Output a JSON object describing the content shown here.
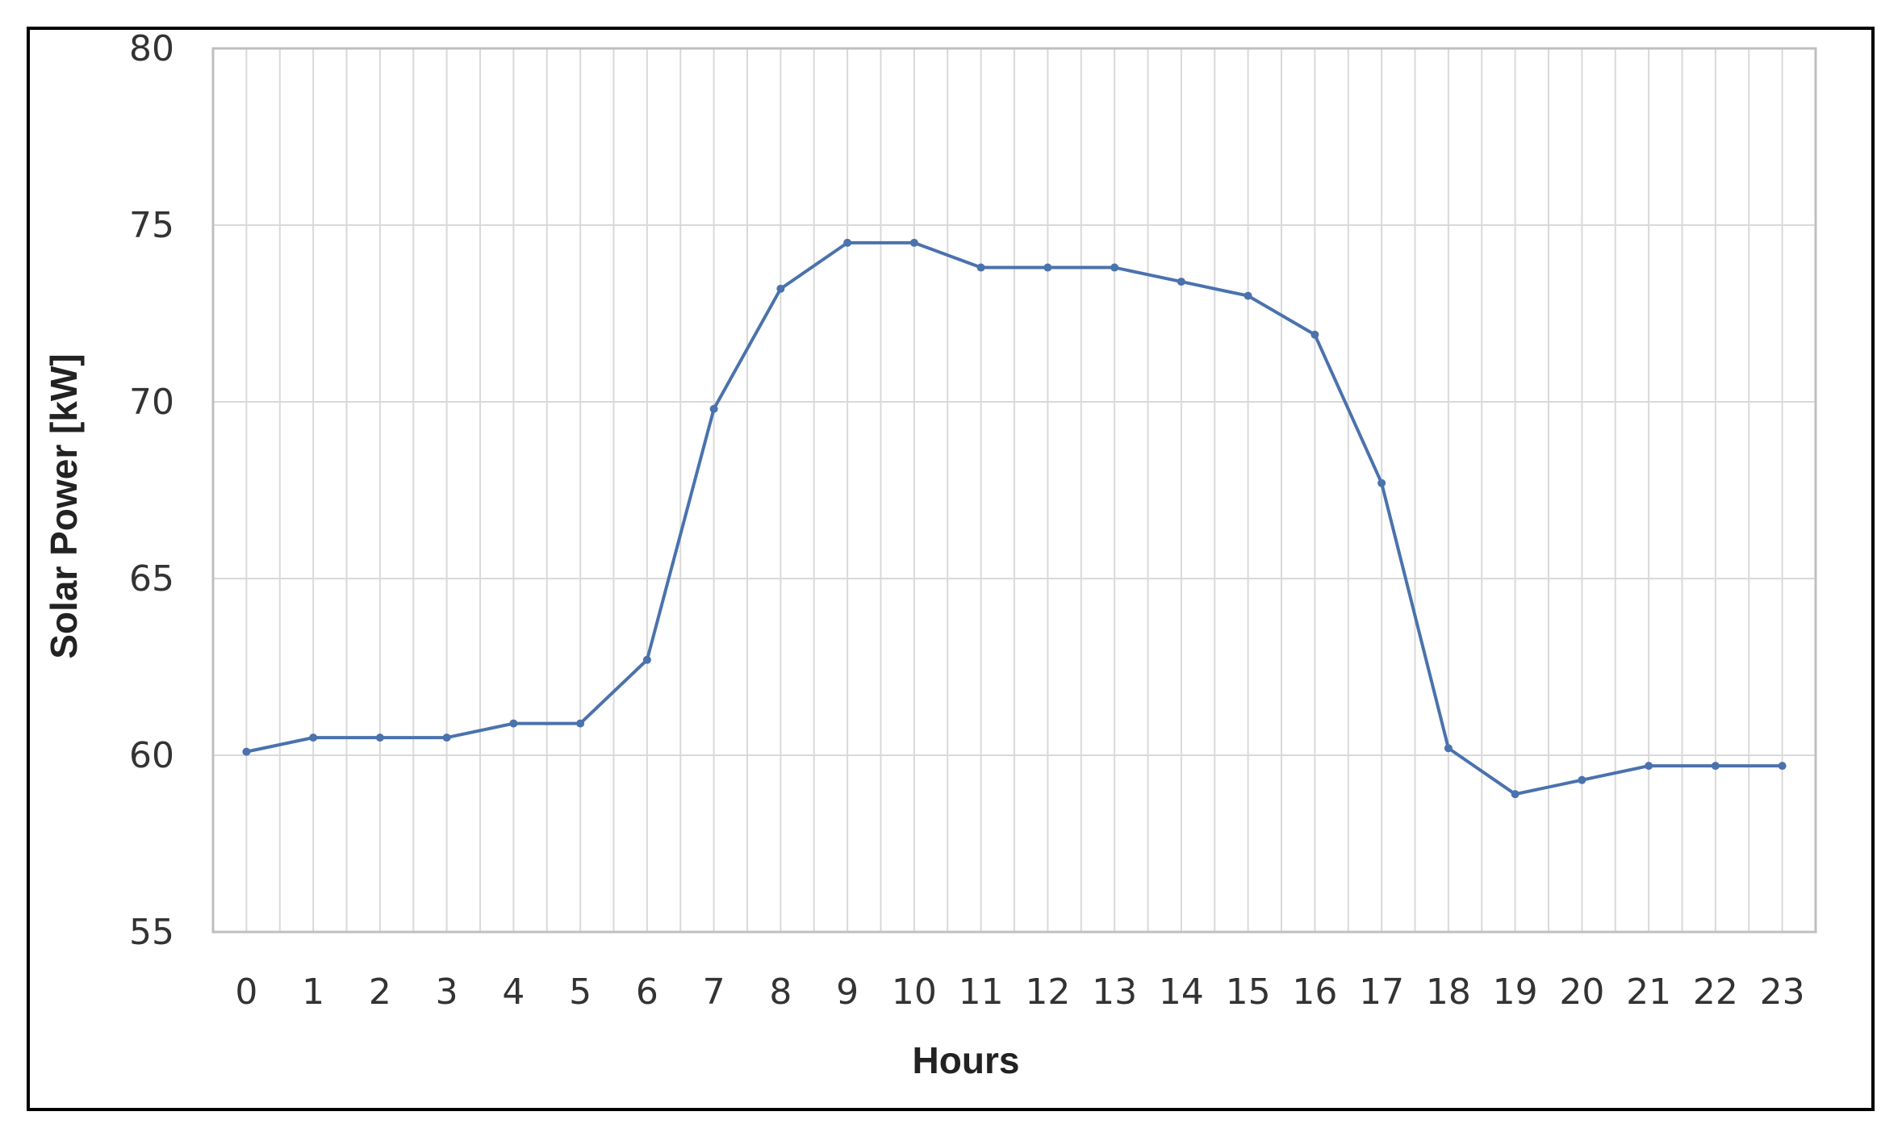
{
  "chart_data": {
    "type": "line",
    "title": "",
    "xlabel": "Hours",
    "ylabel": "Solar Power [kW]",
    "ylim": [
      55,
      80
    ],
    "yticks": [
      55,
      60,
      65,
      70,
      75,
      80
    ],
    "grid": true,
    "legend": "none",
    "x": [
      0,
      1,
      2,
      3,
      4,
      5,
      6,
      7,
      8,
      9,
      10,
      11,
      12,
      13,
      14,
      15,
      16,
      17,
      18,
      19,
      20,
      21,
      22,
      23
    ],
    "series": [
      {
        "values": [
          60.1,
          60.5,
          60.5,
          60.5,
          60.9,
          60.9,
          62.7,
          69.8,
          73.2,
          74.5,
          74.5,
          73.8,
          73.8,
          73.8,
          73.4,
          73.0,
          71.9,
          67.7,
          60.2,
          58.9,
          59.3,
          59.7,
          59.7,
          59.7
        ],
        "color": "#4a72ad"
      }
    ],
    "gridline_color": "#d9d9d9",
    "axis_color": "#bfbfbf"
  }
}
